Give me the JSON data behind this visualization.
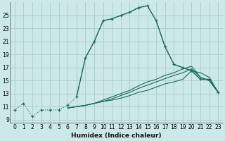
{
  "xlabel": "Humidex (Indice chaleur)",
  "background_color": "#cce8e8",
  "grid_color": "#aacccc",
  "line_color": "#1a6b5a",
  "xlim": [
    -0.5,
    23.5
  ],
  "ylim": [
    8.5,
    27
  ],
  "xticks": [
    0,
    1,
    2,
    3,
    4,
    5,
    6,
    7,
    8,
    9,
    10,
    11,
    12,
    13,
    14,
    15,
    16,
    17,
    18,
    19,
    20,
    21,
    22,
    23
  ],
  "yticks": [
    9,
    11,
    13,
    15,
    17,
    19,
    21,
    23,
    25
  ],
  "main_line": {
    "x": [
      0,
      1,
      2,
      3,
      4,
      5,
      6,
      7,
      8,
      9,
      10,
      11,
      12,
      13,
      14,
      15,
      16,
      17,
      18,
      19,
      20,
      21,
      22,
      23
    ],
    "y": [
      10.5,
      11.5,
      9.5,
      10.5,
      10.5,
      10.5,
      11.2,
      12.5,
      18.5,
      21.0,
      24.2,
      24.5,
      25.0,
      25.5,
      26.2,
      26.5,
      24.2,
      20.2,
      17.5,
      17.0,
      16.5,
      15.2,
      15.2,
      13.2
    ]
  },
  "flat_lines": [
    {
      "x": [
        6,
        7,
        8,
        9,
        10,
        11,
        12,
        13,
        14,
        15,
        16,
        17,
        18,
        19,
        20,
        21,
        22,
        23
      ],
      "y": [
        10.8,
        11.0,
        11.2,
        11.5,
        11.8,
        12.0,
        12.3,
        12.7,
        13.2,
        13.5,
        14.0,
        14.5,
        14.8,
        15.2,
        16.5,
        16.2,
        15.5,
        13.2
      ]
    },
    {
      "x": [
        6,
        7,
        8,
        9,
        10,
        11,
        12,
        13,
        14,
        15,
        16,
        17,
        18,
        19,
        20,
        21,
        22,
        23
      ],
      "y": [
        10.8,
        11.0,
        11.2,
        11.5,
        11.8,
        12.2,
        12.7,
        13.2,
        13.8,
        14.3,
        14.8,
        15.3,
        15.8,
        16.2,
        16.8,
        15.5,
        15.0,
        13.2
      ]
    },
    {
      "x": [
        6,
        7,
        8,
        9,
        10,
        11,
        12,
        13,
        14,
        15,
        16,
        17,
        18,
        19,
        20,
        21,
        22,
        23
      ],
      "y": [
        10.8,
        11.0,
        11.2,
        11.5,
        12.0,
        12.5,
        13.0,
        13.5,
        14.2,
        14.8,
        15.2,
        15.8,
        16.2,
        16.8,
        17.2,
        15.5,
        15.0,
        13.2
      ]
    }
  ]
}
